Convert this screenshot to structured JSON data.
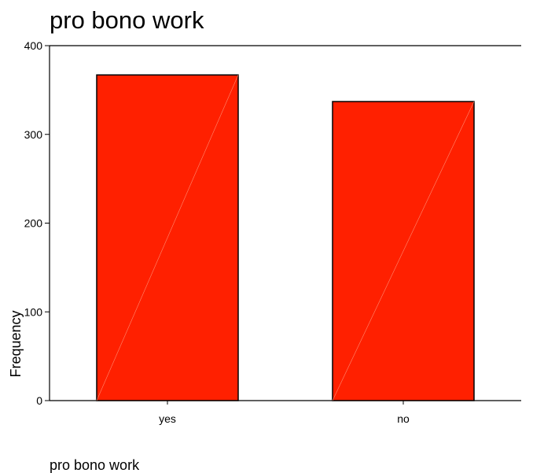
{
  "chart_data": {
    "type": "bar",
    "title": "pro bono work",
    "xlabel": "pro bono work",
    "ylabel": "Frequency",
    "categories": [
      "yes",
      "no"
    ],
    "values": [
      367,
      337
    ],
    "ylim": [
      0,
      400
    ],
    "yticks": [
      "0",
      "100",
      "200",
      "300",
      "400"
    ],
    "bar_color": "#ff2000",
    "grid": false
  }
}
